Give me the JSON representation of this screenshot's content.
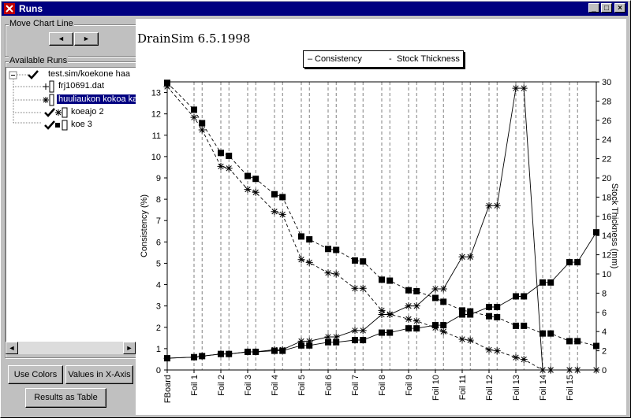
{
  "window": {
    "title": "Runs",
    "min": "_",
    "max": "□",
    "close": "×"
  },
  "move_chart_line": {
    "label": "Move Chart Line",
    "left": "◄",
    "right": "►"
  },
  "available_runs": {
    "label": "Available Runs",
    "root": "test.sim/koekone haa",
    "items": [
      "frj10691.dat",
      "huuliaukon kokoa ka",
      "koeajo 2",
      "koe 3"
    ]
  },
  "buttons": {
    "use_colors": "Use Colors",
    "values_x": "Values in X-Axis",
    "results_table": "Results as Table"
  },
  "app_title": "DrainSim 6.5.1998",
  "legend": {
    "consistency": "Consistency",
    "stock": "Stock Thickness"
  },
  "chart_data": {
    "type": "line",
    "title": "DrainSim 6.5.1998",
    "xlabel": "",
    "ylabel": "Consistency (%)",
    "y2label": "Stock Thickness (mm)",
    "ylim": [
      0,
      13.5
    ],
    "y2lim": [
      0,
      30
    ],
    "yticks": [
      0,
      1,
      2,
      3,
      4,
      5,
      6,
      7,
      8,
      9,
      10,
      11,
      12,
      13
    ],
    "y2ticks": [
      0,
      2,
      4,
      6,
      8,
      10,
      12,
      14,
      16,
      18,
      20,
      22,
      24,
      26,
      28,
      30
    ],
    "categories": [
      "FBoard",
      "Foil 1",
      "Foil 2",
      "Foil 3",
      "Foil 4",
      "Foil 5",
      "Foil 6",
      "Foil 7",
      "Foil 8",
      "Foil 9",
      "Foil 10",
      "Foil 11",
      "Foil 12",
      "Foil 13",
      "Foil 14",
      "Foil 15"
    ],
    "x": [
      0,
      1,
      1.3,
      2,
      2.3,
      3,
      3.3,
      4,
      4.3,
      5,
      5.3,
      6,
      6.3,
      7,
      7.3,
      8,
      8.3,
      9,
      9.3,
      10,
      10.3,
      11,
      11.3,
      12,
      12.3,
      13,
      13.3,
      14,
      14.3,
      15,
      15.3,
      16
    ],
    "series": [
      {
        "name": "Consistency",
        "run": "koeajo 2",
        "axis": "left",
        "style": "solid",
        "marker": "star",
        "values": [
          0.55,
          0.6,
          0.65,
          0.75,
          0.75,
          0.85,
          0.85,
          0.95,
          0.95,
          1.35,
          1.35,
          1.55,
          1.55,
          1.85,
          1.85,
          2.6,
          2.6,
          3.0,
          3.0,
          3.8,
          3.8,
          5.3,
          5.3,
          7.7,
          7.7,
          13.2,
          13.2,
          0,
          0,
          0,
          0,
          0
        ]
      },
      {
        "name": "Consistency",
        "run": "koe 3",
        "axis": "left",
        "style": "solid",
        "marker": "square",
        "values": [
          0.55,
          0.6,
          0.65,
          0.75,
          0.75,
          0.85,
          0.85,
          0.9,
          0.9,
          1.15,
          1.15,
          1.3,
          1.3,
          1.4,
          1.4,
          1.75,
          1.75,
          1.95,
          1.95,
          2.1,
          2.1,
          2.6,
          2.6,
          2.95,
          2.95,
          3.45,
          3.45,
          4.1,
          4.1,
          5.05,
          5.05,
          6.45
        ]
      },
      {
        "name": "Stock Thickness",
        "run": "koeajo 2",
        "axis": "right",
        "style": "dashed",
        "marker": "star",
        "values": [
          29.5,
          26.3,
          25.0,
          21.2,
          21.0,
          18.8,
          18.5,
          16.5,
          16.2,
          11.5,
          11.2,
          10.1,
          10.0,
          8.5,
          8.5,
          6.2,
          5.8,
          5.3,
          5.1,
          4.4,
          4.0,
          3.2,
          3.1,
          2.1,
          2.0,
          1.3,
          1.1,
          0,
          0,
          0,
          0,
          0
        ]
      },
      {
        "name": "Stock Thickness",
        "run": "koe 3",
        "axis": "right",
        "style": "dashed",
        "marker": "square",
        "values": [
          29.9,
          27.1,
          25.7,
          22.6,
          22.3,
          20.2,
          19.9,
          18.3,
          18.0,
          13.9,
          13.6,
          12.6,
          12.5,
          11.4,
          11.3,
          9.4,
          9.3,
          8.3,
          8.2,
          7.5,
          7.1,
          6.2,
          6.1,
          5.6,
          5.5,
          4.6,
          4.6,
          3.8,
          3.8,
          3.0,
          3.0,
          2.5
        ]
      }
    ]
  }
}
